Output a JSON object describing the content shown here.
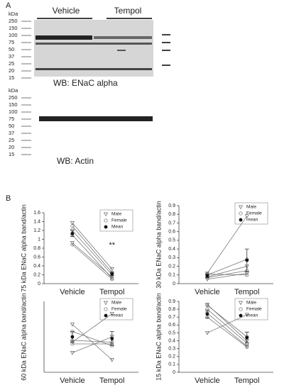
{
  "panel_a": {
    "label": "A",
    "groups": [
      "Vehicle",
      "Tempol"
    ],
    "blot_top": {
      "markers": [
        "kDa",
        "250",
        "150",
        "100",
        "75",
        "50",
        "37",
        "25",
        "20",
        "15"
      ],
      "caption": "WB: ENaC alpha"
    },
    "blot_bottom": {
      "markers": [
        "kDa",
        "250",
        "150",
        "100",
        "75",
        "50",
        "37",
        "25",
        "20",
        "15"
      ],
      "caption": "WB: Actin"
    }
  },
  "panel_b": {
    "label": "B"
  },
  "chart_data": [
    {
      "type": "line",
      "y_label": "75 kDa ENaC alpha band/actin",
      "categories": [
        "Vehicle",
        "Tempol"
      ],
      "ylim": [
        0,
        1.6
      ],
      "yticks": [
        0,
        0.2,
        0.4,
        0.6,
        0.8,
        1,
        1.2,
        1.4,
        1.6
      ],
      "annotation": "**",
      "series": [
        {
          "name": "Male",
          "subjects": [
            [
              1.37,
              0.33
            ],
            [
              1.2,
              0.2
            ],
            [
              0.92,
              0.15
            ]
          ]
        },
        {
          "name": "Female",
          "subjects": [
            [
              1.3,
              0.25
            ],
            [
              1.1,
              0.12
            ],
            [
              0.88,
              0.1
            ]
          ]
        },
        {
          "name": "Mean",
          "values": [
            1.13,
            0.22
          ],
          "errors": [
            0.07,
            0.04
          ]
        }
      ]
    },
    {
      "type": "line",
      "y_label": "30 kDa ENaC alpha band/actin",
      "categories": [
        "Vehicle",
        "Tempol"
      ],
      "ylim": [
        0,
        0.9
      ],
      "yticks": [
        0,
        0.1,
        0.2,
        0.3,
        0.4,
        0.5,
        0.6,
        0.7,
        0.8,
        0.9
      ],
      "series": [
        {
          "name": "Male",
          "subjects": [
            [
              0.12,
              0.78
            ],
            [
              0.08,
              0.2
            ],
            [
              0.05,
              0.12
            ]
          ]
        },
        {
          "name": "Female",
          "subjects": [
            [
              0.1,
              0.28
            ],
            [
              0.07,
              0.15
            ],
            [
              0.11,
              0.1
            ]
          ]
        },
        {
          "name": "mean",
          "values": [
            0.09,
            0.27
          ],
          "errors": [
            0.02,
            0.13
          ]
        }
      ]
    },
    {
      "type": "line",
      "y_label": "60 kDa ENaC alpha band/actin",
      "categories": [
        "Vehicle",
        "Tempol"
      ],
      "ylim": [
        0.2,
        0.6
      ],
      "series": [
        {
          "name": "Male",
          "subjects": [
            [
              0.47,
              0.27
            ],
            [
              0.37,
              0.53
            ],
            [
              0.31,
              0.4
            ]
          ]
        },
        {
          "name": "Female",
          "subjects": [
            [
              0.43,
              0.35
            ],
            [
              0.38,
              0.37
            ],
            [
              0.36,
              0.36
            ]
          ]
        },
        {
          "name": "mean",
          "values": [
            0.4,
            0.39
          ],
          "errors": [
            0.03,
            0.04
          ]
        }
      ]
    },
    {
      "type": "line",
      "y_label": "15 kDa ENaC alpha band/actin",
      "categories": [
        "Vehicle",
        "Tempol"
      ],
      "ylim": [
        0,
        0.9
      ],
      "yticks": [
        0,
        0.1,
        0.2,
        0.3,
        0.4,
        0.5,
        0.6,
        0.7,
        0.8,
        0.9
      ],
      "series": [
        {
          "name": "Male",
          "subjects": [
            [
              0.5,
              0.73
            ],
            [
              0.86,
              0.4
            ],
            [
              0.75,
              0.33
            ]
          ]
        },
        {
          "name": "Female",
          "subjects": [
            [
              0.85,
              0.45
            ],
            [
              0.8,
              0.37
            ],
            [
              0.7,
              0.32
            ]
          ]
        },
        {
          "name": "mean",
          "values": [
            0.74,
            0.44
          ],
          "errors": [
            0.05,
            0.07
          ]
        }
      ]
    }
  ]
}
